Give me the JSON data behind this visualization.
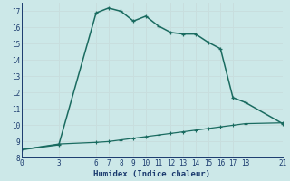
{
  "xlabel": "Humidex (Indice chaleur)",
  "bg_color": "#cce8e8",
  "grid_color": "#b0d4d4",
  "line_color": "#1a6b60",
  "line1_x": [
    0,
    3,
    6,
    7,
    8,
    9,
    10,
    11,
    12,
    13,
    14,
    15,
    16,
    17,
    18,
    21
  ],
  "line1_y": [
    8.5,
    8.8,
    16.9,
    17.2,
    17.0,
    16.4,
    16.7,
    16.1,
    15.7,
    15.6,
    15.6,
    15.1,
    14.7,
    11.7,
    11.4,
    10.1
  ],
  "line2_x": [
    0,
    3,
    6,
    7,
    8,
    9,
    10,
    11,
    12,
    13,
    14,
    15,
    16,
    17,
    18,
    21
  ],
  "line2_y": [
    8.5,
    8.85,
    8.95,
    9.0,
    9.1,
    9.2,
    9.3,
    9.4,
    9.5,
    9.6,
    9.7,
    9.8,
    9.9,
    10.0,
    10.1,
    10.15
  ],
  "xlim": [
    0,
    21
  ],
  "ylim": [
    8,
    17.5
  ],
  "xticks": [
    0,
    3,
    6,
    7,
    8,
    9,
    10,
    11,
    12,
    13,
    14,
    15,
    16,
    17,
    18,
    21
  ],
  "yticks": [
    8,
    9,
    10,
    11,
    12,
    13,
    14,
    15,
    16,
    17
  ]
}
